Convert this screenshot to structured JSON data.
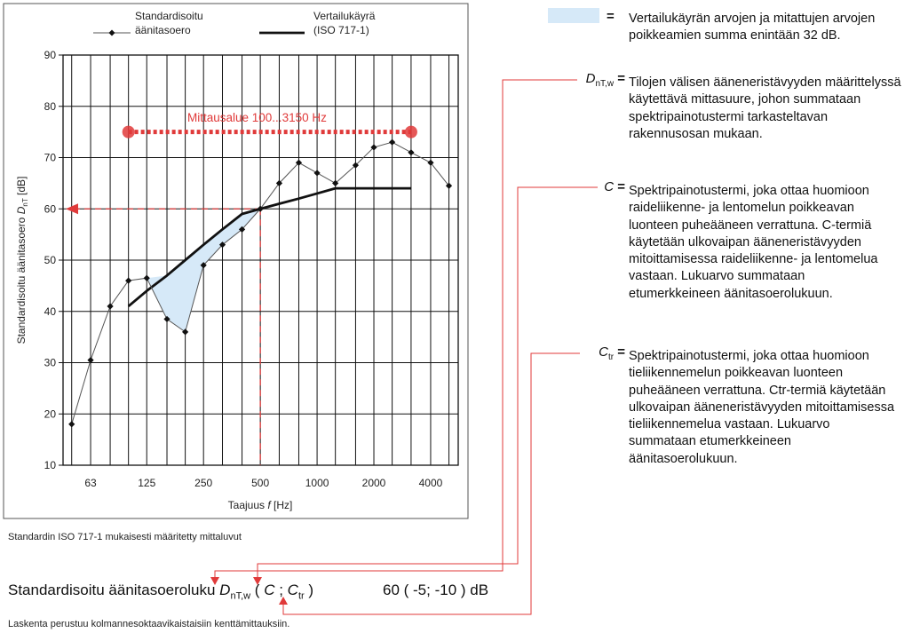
{
  "legend": {
    "measured_label_1": "Standardisoitu",
    "measured_label_2": "äänitasoero",
    "reference_label_1": "Vertailukäyrä",
    "reference_label_2": "(ISO 717-1)"
  },
  "range_annotation": "Mittausalue 100...3150 Hz",
  "standard_note": "Standardin ISO 717-1 mukaisesti määritetty mittaluvut",
  "result": {
    "label": "Standardisoitu äänitasoeroluku",
    "symbol_main": "D",
    "symbol_sub": "nT,w",
    "open_paren": " (",
    "c_symbol": "C",
    "separator": " ; ",
    "ctr_symbol": "C",
    "ctr_sub": "tr",
    "close_paren": " )",
    "value": "60 ( -5; -10 ) dB"
  },
  "footer_note": "Laskenta perustuu kolmannesoktaavikaistaisiin kenttämittauksiin.",
  "definitions": {
    "area": {
      "equals": "=",
      "text": "Vertailukäyrän arvojen ja mitattujen arvojen poikkeamien summa enintään 32 dB."
    },
    "dntw": {
      "symbol_main": "D",
      "symbol_sub": "nT,w",
      "equals": " =",
      "text": "Tilojen välisen ääneneristävyyden määrittelyssä käytettävä mittasuure, johon summataan spektripainotustermi tarkasteltavan rakennusosan mukaan."
    },
    "c": {
      "symbol_main": "C",
      "equals": " =",
      "text": "Spektripainotustermi, joka ottaa huomioon raideliikenne- ja lentomelun poikkeavan luonteen puheääneen verrattuna. C-termiä käytetään ulkovaipan ääneneristävyyden mitoittamisessa raideliikenne- ja lentomelua vastaan. Lukuarvo summataan etumerkkeineen äänitasoerolukuun."
    },
    "ctr": {
      "symbol_main": "C",
      "symbol_sub": "tr",
      "equals": " =",
      "text": "Spektripainotustermi, joka ottaa huomioon tieliikennemelun poikkeavan luonteen puheääneen verrattuna. Ctr-termiä käytetään ulkovaipan ääneneristävyyden mitoittamisessa tieliikennemelua vastaan. Lukuarvo summataan etumerkkeineen äänitasoerolukuun."
    }
  },
  "colors": {
    "red": "#e03a3a",
    "deficiency_fill": "#d6e9f8",
    "reference": "#111111",
    "measured": "#555555"
  },
  "chart_data": {
    "type": "line",
    "title": "",
    "xlabel": "Taajuus f [Hz]",
    "ylabel": "Standardisoitu äänitasoero DnT [dB]",
    "ylim": [
      10,
      90
    ],
    "yticks": [
      10,
      20,
      30,
      40,
      50,
      60,
      70,
      80,
      90
    ],
    "x_scale": "log (third-octave bands)",
    "x_tick_labels": [
      "63",
      "125",
      "250",
      "500",
      "1000",
      "2000",
      "4000"
    ],
    "grid": true,
    "legend_position": "top",
    "series": [
      {
        "name": "Standardisoitu äänitasoero",
        "x": [
          50,
          63,
          80,
          100,
          125,
          160,
          200,
          250,
          315,
          400,
          500,
          630,
          800,
          1000,
          1250,
          1600,
          2000,
          2500,
          3150,
          4000,
          5000
        ],
        "y": [
          18,
          30.5,
          41,
          46,
          46.5,
          38.5,
          36,
          49,
          53,
          56,
          60,
          65,
          69,
          67,
          65,
          68.5,
          72,
          73,
          71,
          69,
          64.5
        ]
      },
      {
        "name": "Vertailukäyrä (ISO 717-1)",
        "x": [
          100,
          125,
          160,
          200,
          250,
          315,
          400,
          500,
          630,
          800,
          1000,
          1250,
          1600,
          2000,
          2500,
          3150
        ],
        "y": [
          41,
          44,
          47,
          50,
          53,
          56,
          59,
          60,
          61,
          62,
          63,
          64,
          64,
          64,
          64,
          64
        ]
      }
    ],
    "annotations": {
      "range_start_hz": 100,
      "range_end_hz": 3150,
      "range_marker_level_db": 75,
      "result_db": 60,
      "result_hz": 500
    }
  }
}
